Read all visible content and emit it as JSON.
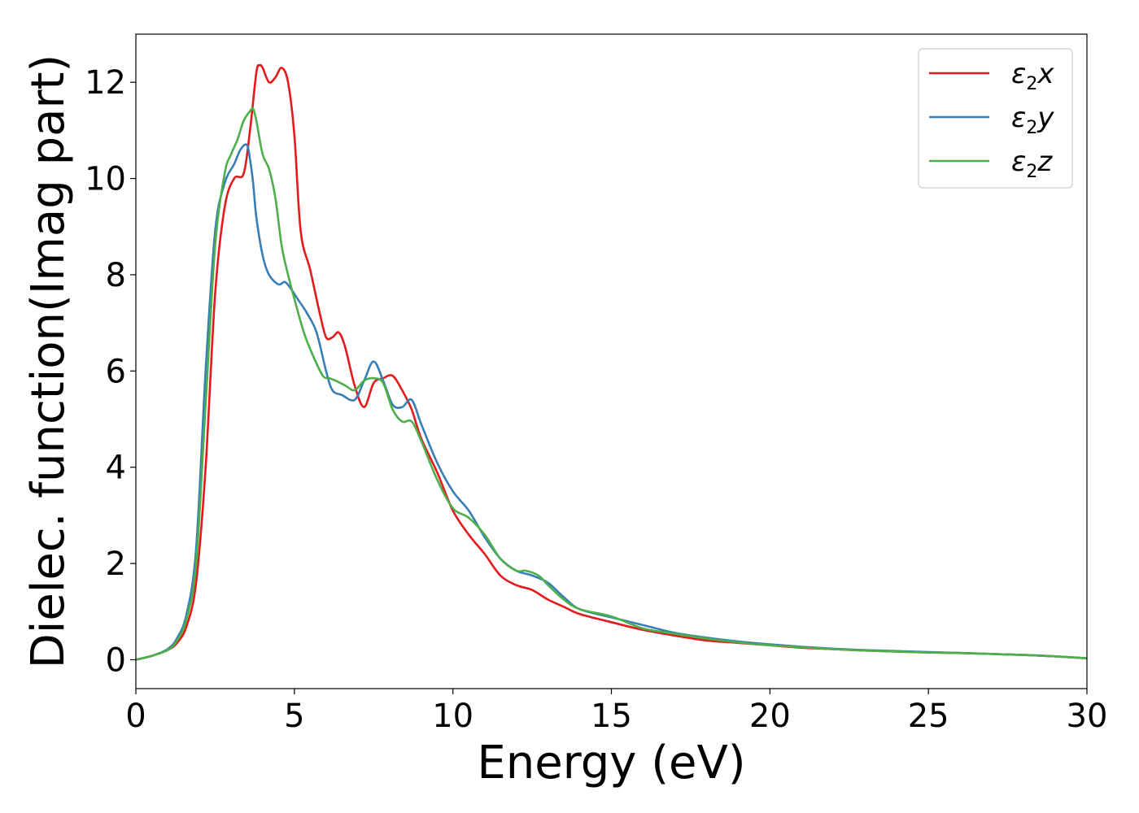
{
  "chart_data": {
    "type": "line",
    "title": "",
    "xlabel": "Energy (eV)",
    "ylabel": "Dielec. function(Imag part)",
    "xlim": [
      0,
      30
    ],
    "ylim": [
      -0.6,
      13
    ],
    "xticks": [
      0,
      5,
      10,
      15,
      20,
      25,
      30
    ],
    "yticks": [
      0,
      2,
      4,
      6,
      8,
      10,
      12
    ],
    "grid": false,
    "legend_position": "top-right",
    "series": [
      {
        "name": "ε2x",
        "legend_symbol": "ε",
        "legend_subscript": "2",
        "legend_suffix": "x",
        "color": "#e41a1c",
        "x": [
          0,
          0.5,
          1.0,
          1.3,
          1.6,
          1.9,
          2.2,
          2.5,
          2.8,
          3.1,
          3.4,
          3.6,
          3.8,
          3.9,
          4.0,
          4.2,
          4.4,
          4.6,
          4.8,
          5.0,
          5.2,
          5.5,
          5.8,
          6.0,
          6.2,
          6.4,
          6.6,
          6.9,
          7.2,
          7.5,
          7.8,
          8.1,
          8.4,
          8.7,
          9.0,
          9.5,
          10.0,
          10.5,
          11.0,
          11.5,
          12.0,
          12.5,
          13.0,
          13.5,
          14.0,
          15.0,
          16.0,
          17.0,
          18.0,
          19.0,
          20.0,
          21.0,
          22.0,
          23.0,
          24.0,
          25.0,
          26.0,
          27.0,
          28.0,
          29.0,
          30.0
        ],
        "y": [
          0,
          0.08,
          0.2,
          0.35,
          0.7,
          1.6,
          4.0,
          7.6,
          9.4,
          10.0,
          10.1,
          11.0,
          12.2,
          12.35,
          12.3,
          12.0,
          12.1,
          12.3,
          12.0,
          10.9,
          8.9,
          8.1,
          7.2,
          6.7,
          6.7,
          6.8,
          6.5,
          5.7,
          5.25,
          5.75,
          5.85,
          5.9,
          5.6,
          5.2,
          4.6,
          3.9,
          3.1,
          2.6,
          2.2,
          1.75,
          1.55,
          1.45,
          1.25,
          1.1,
          0.95,
          0.78,
          0.62,
          0.5,
          0.4,
          0.35,
          0.3,
          0.25,
          0.22,
          0.19,
          0.17,
          0.15,
          0.14,
          0.12,
          0.1,
          0.07,
          0.03
        ]
      },
      {
        "name": "ε2y",
        "legend_symbol": "ε",
        "legend_subscript": "2",
        "legend_suffix": "y",
        "color": "#377eb8",
        "x": [
          0,
          0.5,
          1.0,
          1.3,
          1.6,
          1.9,
          2.2,
          2.5,
          2.8,
          3.1,
          3.3,
          3.5,
          3.6,
          3.7,
          3.8,
          4.0,
          4.2,
          4.5,
          4.7,
          4.9,
          5.1,
          5.4,
          5.7,
          6.0,
          6.2,
          6.5,
          6.9,
          7.2,
          7.5,
          7.8,
          8.1,
          8.4,
          8.7,
          9.0,
          9.5,
          10.0,
          10.5,
          11.0,
          11.5,
          12.0,
          12.5,
          13.0,
          13.5,
          14.0,
          15.0,
          16.0,
          17.0,
          18.0,
          19.0,
          20.0,
          21.0,
          22.0,
          23.0,
          24.0,
          25.0,
          26.0,
          27.0,
          28.0,
          29.0,
          30.0
        ],
        "y": [
          0,
          0.08,
          0.22,
          0.45,
          0.95,
          2.3,
          6.0,
          8.9,
          9.9,
          10.3,
          10.6,
          10.7,
          10.4,
          9.9,
          9.2,
          8.4,
          8.0,
          7.8,
          7.85,
          7.7,
          7.5,
          7.2,
          6.8,
          6.0,
          5.6,
          5.5,
          5.4,
          5.8,
          6.2,
          5.8,
          5.3,
          5.25,
          5.4,
          4.9,
          4.1,
          3.5,
          3.1,
          2.55,
          2.1,
          1.85,
          1.75,
          1.6,
          1.3,
          1.05,
          0.88,
          0.72,
          0.56,
          0.46,
          0.38,
          0.32,
          0.27,
          0.23,
          0.2,
          0.18,
          0.16,
          0.14,
          0.12,
          0.1,
          0.07,
          0.03
        ]
      },
      {
        "name": "ε2z",
        "legend_symbol": "ε",
        "legend_subscript": "2",
        "legend_suffix": "z",
        "color": "#4daf4a",
        "x": [
          0,
          0.5,
          1.0,
          1.3,
          1.6,
          1.9,
          2.2,
          2.5,
          2.8,
          3.0,
          3.2,
          3.4,
          3.6,
          3.7,
          3.8,
          4.0,
          4.2,
          4.4,
          4.6,
          4.8,
          5.0,
          5.3,
          5.6,
          5.9,
          6.1,
          6.3,
          6.6,
          6.9,
          7.2,
          7.5,
          7.8,
          8.1,
          8.4,
          8.7,
          9.0,
          9.5,
          10.0,
          10.5,
          11.0,
          11.5,
          12.0,
          12.3,
          12.7,
          13.0,
          13.5,
          14.0,
          15.0,
          16.0,
          17.0,
          18.0,
          19.0,
          20.0,
          21.0,
          22.0,
          23.0,
          24.0,
          25.0,
          26.0,
          27.0,
          28.0,
          29.0,
          30.0
        ],
        "y": [
          0,
          0.08,
          0.2,
          0.4,
          0.85,
          2.0,
          5.3,
          8.6,
          10.1,
          10.5,
          10.8,
          11.2,
          11.4,
          11.45,
          11.2,
          10.5,
          10.2,
          9.6,
          8.6,
          8.0,
          7.5,
          6.8,
          6.3,
          5.9,
          5.85,
          5.8,
          5.7,
          5.6,
          5.8,
          5.85,
          5.75,
          5.2,
          4.95,
          4.95,
          4.55,
          3.75,
          3.15,
          2.95,
          2.6,
          2.1,
          1.85,
          1.85,
          1.75,
          1.55,
          1.25,
          1.05,
          0.9,
          0.65,
          0.54,
          0.44,
          0.36,
          0.3,
          0.26,
          0.22,
          0.19,
          0.17,
          0.15,
          0.14,
          0.12,
          0.1,
          0.07,
          0.03
        ]
      }
    ]
  }
}
